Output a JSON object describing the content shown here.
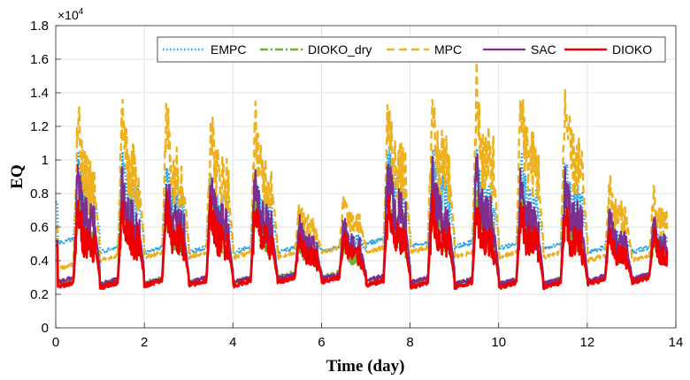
{
  "chart_data": {
    "type": "line",
    "title": "",
    "xlabel": "Time (day)",
    "ylabel": "EQ",
    "multiplier_label": "×10",
    "multiplier_exponent": "4",
    "xlim": [
      0,
      14
    ],
    "ylim": [
      0,
      1.8
    ],
    "x_ticks": [
      "0",
      "2",
      "4",
      "6",
      "8",
      "10",
      "12",
      "14"
    ],
    "y_ticks": [
      "0",
      "0.2",
      "0.4",
      "0.6",
      "0.8",
      "1",
      "1.2",
      "1.4",
      "1.6",
      "1.8"
    ],
    "grid": true,
    "legend_position": "top-right",
    "series": [
      {
        "name": "EMPC",
        "color": "#2aa3e0",
        "style": "dotted",
        "day_peaks": [
          0.98,
          0.98,
          0.93,
          0.88,
          0.87,
          0.58,
          0.58,
          1.04,
          1.02,
          0.99,
          0.97,
          0.98,
          0.6,
          0.58
        ],
        "day_base": [
          0.5,
          0.45,
          0.45,
          0.45,
          0.45,
          0.45,
          0.45,
          0.5,
          0.48,
          0.48,
          0.47,
          0.47,
          0.45,
          0.45
        ]
      },
      {
        "name": "DIOKO_dry",
        "color": "#77ac30",
        "style": "dashdot",
        "day_peaks": [
          0.75,
          0.75,
          0.74,
          0.73,
          0.72,
          0.5,
          0.5,
          0.8,
          0.79,
          0.78,
          0.77,
          0.77,
          0.55,
          0.55
        ],
        "day_base": [
          0.26,
          0.26,
          0.27,
          0.27,
          0.27,
          0.3,
          0.3,
          0.27,
          0.26,
          0.26,
          0.26,
          0.26,
          0.27,
          0.28
        ]
      },
      {
        "name": "MPC",
        "color": "#edb120",
        "style": "dashed",
        "day_peaks": [
          1.21,
          1.27,
          1.26,
          1.23,
          1.22,
          0.73,
          0.75,
          1.29,
          1.35,
          1.4,
          1.38,
          1.35,
          0.85,
          0.78
        ],
        "day_base": [
          0.35,
          0.4,
          0.42,
          0.42,
          0.42,
          0.42,
          0.45,
          0.45,
          0.45,
          0.42,
          0.42,
          0.42,
          0.4,
          0.4
        ]
      },
      {
        "name": "SAC",
        "color": "#7e2f8e",
        "style": "solid",
        "day_peaks": [
          0.89,
          0.88,
          0.86,
          0.86,
          0.86,
          0.62,
          0.63,
          0.97,
          0.94,
          0.94,
          0.88,
          0.88,
          0.66,
          0.63
        ],
        "day_base": [
          0.27,
          0.26,
          0.26,
          0.27,
          0.27,
          0.29,
          0.29,
          0.28,
          0.27,
          0.26,
          0.26,
          0.26,
          0.28,
          0.29
        ]
      },
      {
        "name": "DIOKO",
        "color": "#ee0000",
        "style": "solid",
        "day_peaks": [
          0.7,
          0.72,
          0.72,
          0.71,
          0.7,
          0.55,
          0.55,
          0.72,
          0.72,
          0.72,
          0.7,
          0.7,
          0.55,
          0.55
        ],
        "day_base": [
          0.24,
          0.24,
          0.25,
          0.25,
          0.25,
          0.27,
          0.27,
          0.25,
          0.24,
          0.24,
          0.24,
          0.24,
          0.26,
          0.27
        ]
      }
    ]
  }
}
